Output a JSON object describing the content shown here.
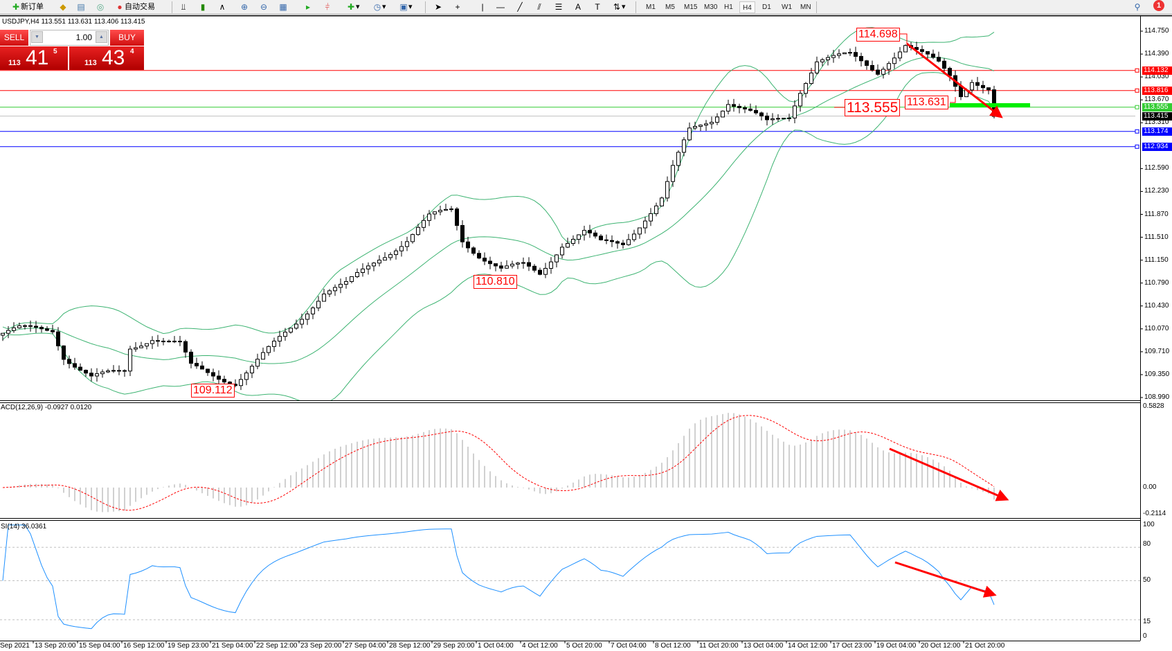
{
  "toolbar": {
    "new_order": "新订单",
    "auto_trading": "自动交易",
    "timeframes": [
      "M1",
      "M5",
      "M15",
      "M30",
      "H1",
      "H4",
      "D1",
      "W1",
      "MN"
    ],
    "active_timeframe": "H4",
    "notification_count": "1"
  },
  "chart_header": "USDJPY,H4  113.551 113.631 113.406 113.415",
  "one_click": {
    "sell": "SELL",
    "buy": "BUY",
    "lot": "1.00",
    "sell_price": {
      "prefix": "113",
      "big": "41",
      "pip": "5"
    },
    "buy_price": {
      "prefix": "113",
      "big": "43",
      "pip": "4"
    }
  },
  "price_axis": [
    "114.750",
    "114.390",
    "114.030",
    "113.670",
    "113.310",
    "112.590",
    "112.230",
    "111.870",
    "111.510",
    "111.150",
    "110.790",
    "110.430",
    "110.070",
    "109.710",
    "109.350",
    "108.990"
  ],
  "levels": [
    {
      "price": 113.816,
      "label": "113.816",
      "color": "#ff0000"
    },
    {
      "price": 114.132,
      "label": "114.132",
      "color": "#ff0000"
    },
    {
      "price": 113.555,
      "label": "113.555",
      "color": "#33cc33"
    },
    {
      "price": 113.415,
      "label": "113.415",
      "color": "#000000",
      "line": "#c0c0c0"
    },
    {
      "price": 113.174,
      "label": "113.174",
      "color": "#0000ff"
    },
    {
      "price": 112.934,
      "label": "112.934",
      "color": "#0000ff"
    }
  ],
  "annotations": {
    "high": "114.698",
    "level": "113.555",
    "recent": "113.631",
    "low1": "110.810",
    "low2": "109.112"
  },
  "macd": {
    "label": "ACD(12,26,9) -0.0927 0.0120",
    "axis": [
      "0.5828",
      "0.00",
      "-0.2114"
    ],
    "max": 0.5828,
    "min": -0.2114
  },
  "rsi": {
    "label": "SI(14) 36.0361",
    "axis": [
      "100",
      "80",
      "50",
      "15",
      "0"
    ],
    "levels": [
      80,
      50,
      15
    ]
  },
  "time_axis": [
    "Sep 2021",
    "13 Sep 20:00",
    "15 Sep 04:00",
    "16 Sep 12:00",
    "19 Sep 23:00",
    "21 Sep 04:00",
    "22 Sep 12:00",
    "23 Sep 20:00",
    "27 Sep 04:00",
    "28 Sep 12:00",
    "29 Sep 20:00",
    "1 Oct 04:00",
    "4 Oct 12:00",
    "5 Oct 20:00",
    "7 Oct 04:00",
    "8 Oct 12:00",
    "11 Oct 20:00",
    "13 Oct 04:00",
    "14 Oct 12:00",
    "17 Oct 23:00",
    "19 Oct 04:00",
    "20 Oct 12:00",
    "21 Oct 20:00"
  ],
  "chart": {
    "symbol": "USDJPY",
    "timeframe": "H4",
    "price_range": [
      108.99,
      114.75
    ],
    "close_keypoints": [
      [
        0,
        110.0
      ],
      [
        3,
        110.06
      ],
      [
        9,
        110.06
      ],
      [
        11,
        109.65
      ],
      [
        16,
        109.3
      ],
      [
        22,
        109.4
      ],
      [
        23,
        109.77
      ],
      [
        27,
        109.94
      ],
      [
        32,
        109.82
      ],
      [
        34,
        109.47
      ],
      [
        42,
        109.23
      ],
      [
        45,
        109.47
      ],
      [
        49,
        109.82
      ],
      [
        53,
        110.17
      ],
      [
        58,
        110.65
      ],
      [
        62,
        110.76
      ],
      [
        68,
        111.18
      ],
      [
        73,
        111.47
      ],
      [
        77,
        111.82
      ],
      [
        81,
        111.94
      ],
      [
        83,
        111.47
      ],
      [
        86,
        111.24
      ],
      [
        90,
        111.0
      ],
      [
        94,
        111.06
      ],
      [
        97,
        110.94
      ],
      [
        101,
        111.41
      ],
      [
        105,
        111.59
      ],
      [
        108,
        111.41
      ],
      [
        112,
        111.41
      ],
      [
        116,
        111.82
      ],
      [
        119,
        112.12
      ],
      [
        121,
        112.59
      ],
      [
        124,
        113.18
      ],
      [
        128,
        113.36
      ],
      [
        131,
        113.65
      ],
      [
        135,
        113.47
      ],
      [
        138,
        113.3
      ],
      [
        142,
        113.41
      ],
      [
        144,
        113.83
      ],
      [
        147,
        114.3
      ],
      [
        153,
        114.36
      ],
      [
        158,
        114.12
      ],
      [
        160,
        114.3
      ],
      [
        163,
        114.53
      ],
      [
        165,
        114.42
      ],
      [
        169,
        114.24
      ],
      [
        171,
        114.06
      ],
      [
        173,
        113.77
      ],
      [
        175,
        114.0
      ],
      [
        178,
        113.83
      ],
      [
        179,
        113.41
      ]
    ],
    "colors": {
      "bands": "#3cb371",
      "rsi": "#1e90ff",
      "macd_hist": "#c0c0c0",
      "macd_signal": "#ff0000",
      "arrows": "#ff0000",
      "zone": "#00ee00"
    }
  }
}
